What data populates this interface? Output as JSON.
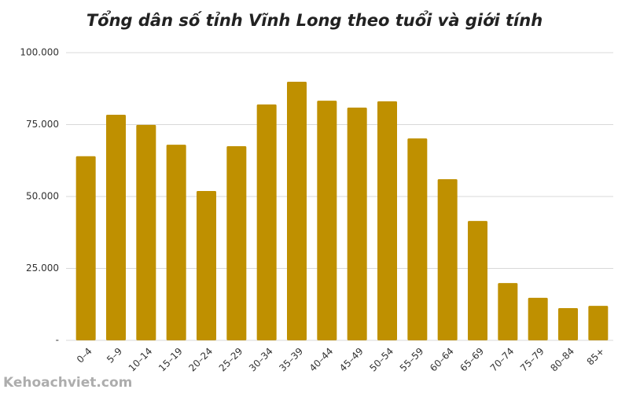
{
  "chart_data": {
    "type": "bar",
    "title": "Tổng dân số tỉnh Vĩnh Long theo tuổi và giới tính",
    "categories": [
      "0–4",
      "5–9",
      "10–14",
      "15–19",
      "20–24",
      "25–29",
      "30–34",
      "35–39",
      "40–44",
      "45–49",
      "50–54",
      "55–59",
      "60–64",
      "65–69",
      "70–74",
      "75–79",
      "80–84",
      "85+"
    ],
    "values": [
      64000,
      78400,
      74900,
      68000,
      51900,
      67500,
      82000,
      89900,
      83300,
      80900,
      83100,
      70200,
      56000,
      41500,
      19900,
      14800,
      11200,
      12000
    ],
    "color": "#bf9000",
    "ylim": [
      0,
      100000
    ],
    "yticks": [
      {
        "value": 0,
        "label": "-"
      },
      {
        "value": 25000,
        "label": "25.000"
      },
      {
        "value": 50000,
        "label": "50.000"
      },
      {
        "value": 75000,
        "label": "75.000"
      },
      {
        "value": 100000,
        "label": "100.000"
      }
    ],
    "grid": true
  },
  "watermark": "Kehoachviet.com"
}
